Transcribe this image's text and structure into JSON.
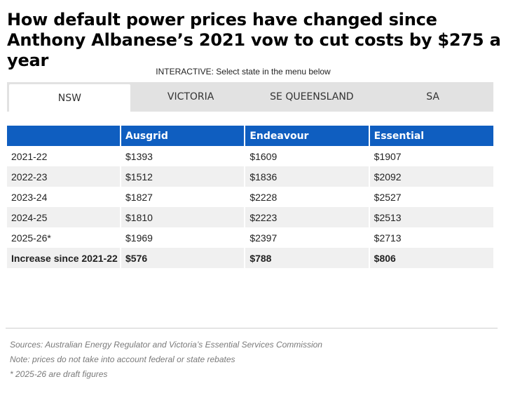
{
  "headline": "How default power prices have changed since Anthony Albanese’s 2021 vow to cut costs by $275 a year",
  "intro": "INTERACTIVE: Select state in the menu below",
  "tabs": [
    {
      "label": "NSW",
      "active": true
    },
    {
      "label": "VICTORIA",
      "active": false
    },
    {
      "label": "SE QUEENSLAND",
      "active": false
    },
    {
      "label": "SA",
      "active": false
    }
  ],
  "table": {
    "headers": [
      "",
      "Ausgrid",
      "Endeavour",
      "Essential"
    ],
    "rows": [
      [
        "2021-22",
        "$1393",
        "$1609",
        "$1907"
      ],
      [
        "2022-23",
        "$1512",
        "$1836",
        "$2092"
      ],
      [
        "2023-24",
        "$1827",
        "$2228",
        "$2527"
      ],
      [
        "2024-25",
        "$1810",
        "$2223",
        "$2513"
      ],
      [
        "2025-26*",
        "$1969",
        "$2397",
        "$2713"
      ]
    ],
    "total_row": [
      "Increase since 2021-22",
      "$576",
      "$788",
      "$806"
    ]
  },
  "notes": [
    "Sources: Australian Energy Regulator and Victoria’s Essential Services Commission",
    "Note: prices do not take into account federal or state rebates",
    "* 2025-26 are draft figures"
  ],
  "colors": {
    "header_bg": "#0f5ec0",
    "tab_bar_bg": "#e2e2e2",
    "stripe_bg": "#f0f0f0"
  }
}
